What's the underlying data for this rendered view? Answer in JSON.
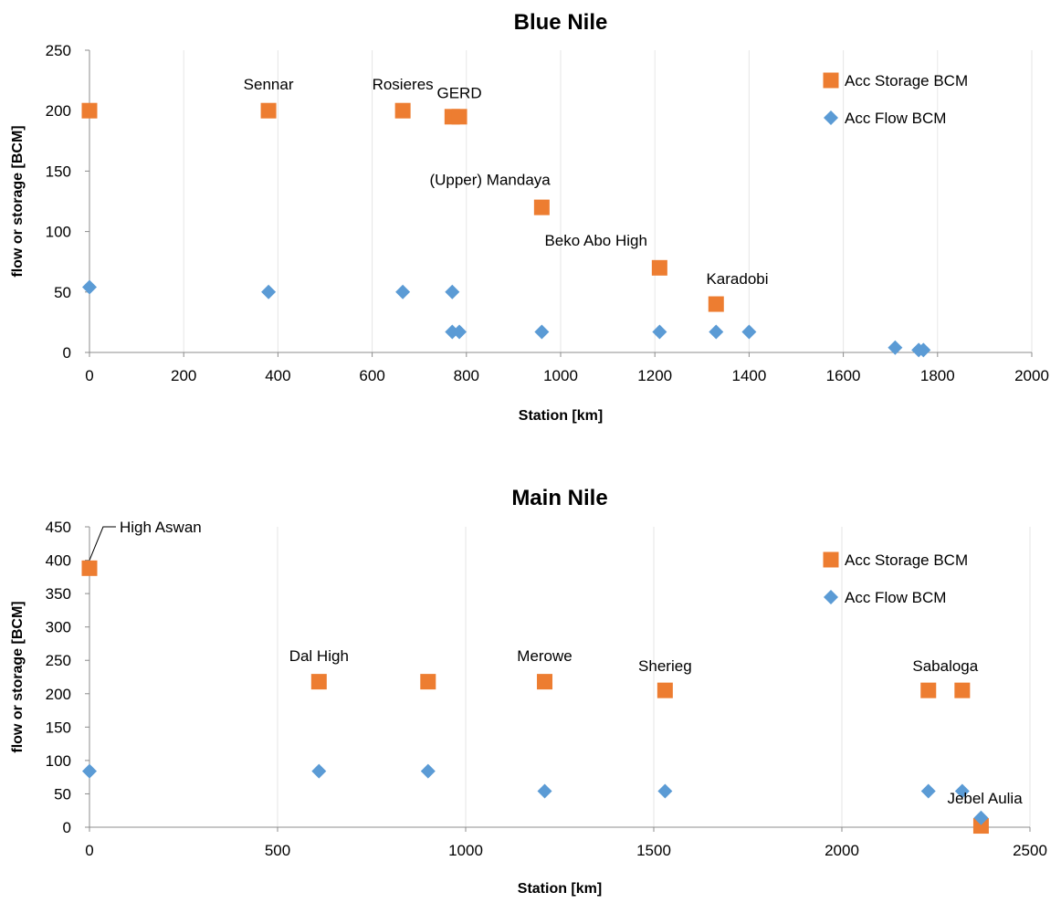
{
  "chart_data": [
    {
      "type": "scatter",
      "title": "Blue Nile",
      "xlabel": "Station [km]",
      "ylabel": "flow or storage [BCM]",
      "xlim": [
        0,
        2000
      ],
      "ylim": [
        0,
        250
      ],
      "xticks": [
        0,
        200,
        400,
        600,
        800,
        1000,
        1200,
        1400,
        1600,
        1800,
        2000
      ],
      "yticks": [
        0,
        50,
        100,
        150,
        200,
        250
      ],
      "xtick_labels": [
        "0",
        "200",
        "400",
        "600",
        "800",
        "1000",
        "1200",
        "1400",
        "1600",
        "1800",
        "2000"
      ],
      "ytick_labels": [
        "0",
        "50",
        "100",
        "150",
        "200",
        "250"
      ],
      "grid": "vertical",
      "legend_position": "top-right",
      "colors": {
        "storage": "#ed7d31",
        "flow": "#5b9bd5"
      },
      "series": [
        {
          "name": "Acc Storage BCM",
          "marker": "square",
          "points": [
            [
              0,
              200
            ],
            [
              380,
              200
            ],
            [
              665,
              200
            ],
            [
              770,
              195
            ],
            [
              785,
              195
            ],
            [
              960,
              120
            ],
            [
              1210,
              70
            ],
            [
              1330,
              40
            ]
          ]
        },
        {
          "name": "Acc Flow BCM",
          "marker": "diamond",
          "points": [
            [
              0,
              54
            ],
            [
              380,
              50
            ],
            [
              665,
              50
            ],
            [
              770,
              50
            ],
            [
              770,
              17
            ],
            [
              785,
              17
            ],
            [
              960,
              17
            ],
            [
              1210,
              17
            ],
            [
              1330,
              17
            ],
            [
              1400,
              17
            ],
            [
              1710,
              4
            ],
            [
              1760,
              2
            ],
            [
              1770,
              2
            ]
          ]
        }
      ],
      "annotations": [
        {
          "text": "Sennar",
          "x": 380,
          "y": 222
        },
        {
          "text": "Rosieres",
          "x": 665,
          "y": 222
        },
        {
          "text": "GERD",
          "x": 785,
          "y": 215
        },
        {
          "text": "(Upper) Mandaya",
          "x": 850,
          "y": 143
        },
        {
          "text": "Beko Abo High",
          "x": 1075,
          "y": 93
        },
        {
          "text": "Karadobi",
          "x": 1375,
          "y": 61
        }
      ]
    },
    {
      "type": "scatter",
      "title": "Main Nile",
      "xlabel": "Station [km]",
      "ylabel": "flow or storage [BCM]",
      "xlim": [
        0,
        2500
      ],
      "ylim": [
        0,
        450
      ],
      "xticks": [
        0,
        500,
        1000,
        1500,
        2000,
        2500
      ],
      "yticks": [
        0,
        50,
        100,
        150,
        200,
        250,
        300,
        350,
        400,
        450
      ],
      "xtick_labels": [
        "0",
        "500",
        "1000",
        "1500",
        "2000",
        "2500"
      ],
      "ytick_labels": [
        "0",
        "50",
        "100",
        "150",
        "200",
        "250",
        "300",
        "350",
        "400",
        "450"
      ],
      "grid": "vertical",
      "legend_position": "top-right",
      "colors": {
        "storage": "#ed7d31",
        "flow": "#5b9bd5"
      },
      "series": [
        {
          "name": "Acc Storage BCM",
          "marker": "square",
          "points": [
            [
              0,
              388
            ],
            [
              610,
              218
            ],
            [
              900,
              218
            ],
            [
              1210,
              218
            ],
            [
              1530,
              205
            ],
            [
              2230,
              205
            ],
            [
              2320,
              205
            ],
            [
              2370,
              2
            ]
          ]
        },
        {
          "name": "Acc Flow BCM",
          "marker": "diamond",
          "points": [
            [
              0,
              84
            ],
            [
              610,
              84
            ],
            [
              900,
              84
            ],
            [
              1210,
              54
            ],
            [
              1530,
              54
            ],
            [
              2230,
              54
            ],
            [
              2320,
              54
            ],
            [
              2370,
              14
            ]
          ]
        }
      ],
      "annotations": [
        {
          "text": "High Aswan",
          "x": 80,
          "y": 450,
          "leader_to": [
            0,
            400
          ]
        },
        {
          "text": "Dal High",
          "x": 610,
          "y": 257
        },
        {
          "text": "Merowe",
          "x": 1210,
          "y": 257
        },
        {
          "text": "Sherieg",
          "x": 1530,
          "y": 242
        },
        {
          "text": "Sabaloga",
          "x": 2275,
          "y": 242
        },
        {
          "text": "Jebel Aulia",
          "x": 2380,
          "y": 44
        }
      ]
    }
  ]
}
